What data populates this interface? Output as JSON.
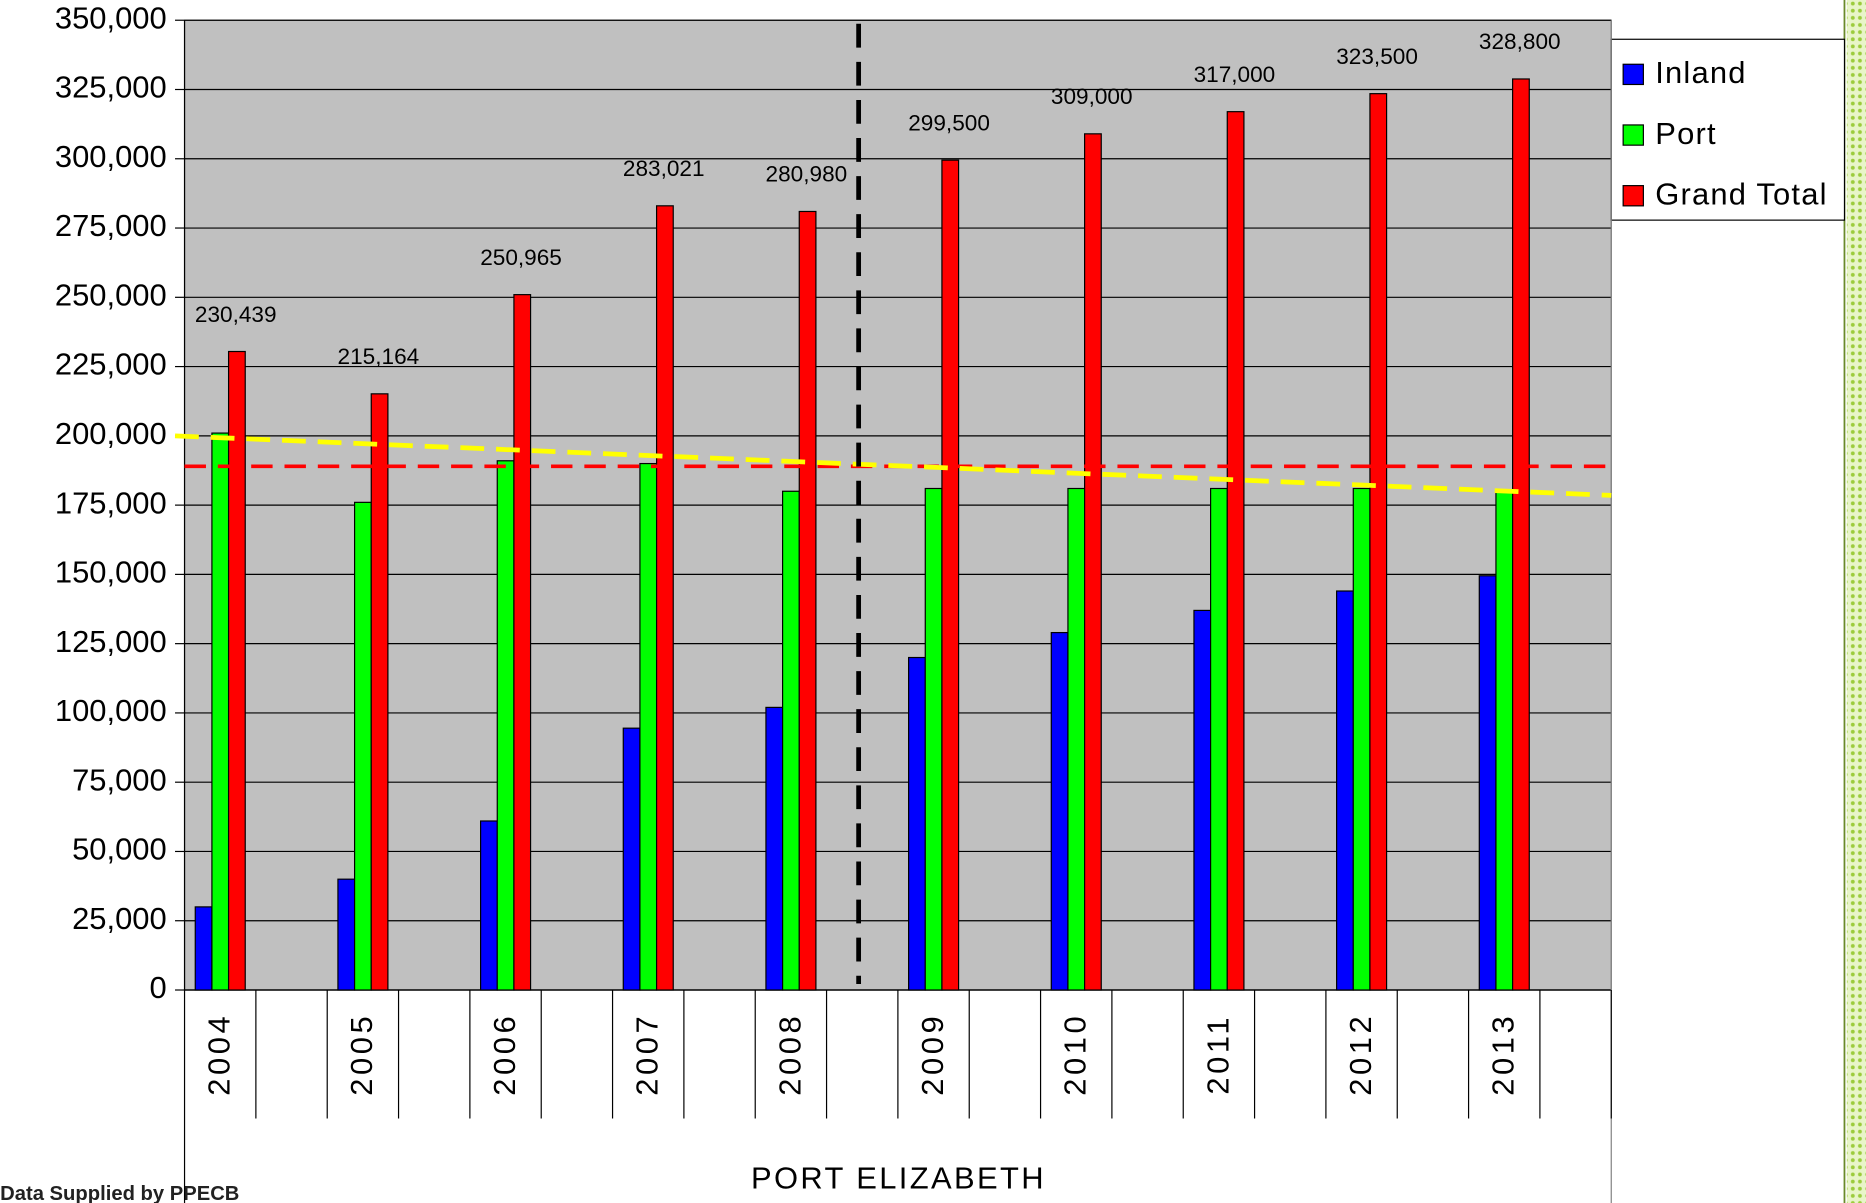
{
  "chart_data": {
    "type": "bar",
    "x_label": "PORT ELIZABETH",
    "footnote": "Data Supplied by PPECB",
    "categories": [
      "2004",
      "2005",
      "2006",
      "2007",
      "2008",
      "2009",
      "2010",
      "2011",
      "2012",
      "2013"
    ],
    "series": [
      {
        "name": "Inland",
        "color": "#0000ff",
        "values": [
          30000,
          40000,
          61000,
          94500,
          102000,
          120000,
          129000,
          137000,
          144000,
          149500
        ]
      },
      {
        "name": "Port",
        "color": "#00ff00",
        "values": [
          201000,
          176000,
          191000,
          190000,
          180000,
          181000,
          181000,
          181000,
          181000,
          180000
        ]
      },
      {
        "name": "Grand Total",
        "color": "#ff0000",
        "values": [
          230439,
          215164,
          250965,
          283021,
          280980,
          299500,
          309000,
          317000,
          323500,
          328800
        ],
        "value_labels": [
          "230,439",
          "215,164",
          "250,965",
          "283,021",
          "280,980",
          "299,500",
          "309,000",
          "317,000",
          "323,500",
          "328,800"
        ]
      }
    ],
    "ylim": [
      0,
      350000
    ],
    "yticks": [
      0,
      {
        "value": 25000,
        "label": "25,000"
      },
      {
        "value": 50000,
        "label": "50,000"
      },
      {
        "value": 75000,
        "label": "75,000"
      },
      {
        "value": 100000,
        "label": "100,000"
      },
      {
        "value": 125000,
        "label": "125,000"
      },
      {
        "value": 150000,
        "label": "150,000"
      },
      {
        "value": 175000,
        "label": "175,000"
      },
      {
        "value": 200000,
        "label": "200,000"
      },
      {
        "value": 225000,
        "label": "225,000"
      },
      {
        "value": 250000,
        "label": "250,000"
      },
      {
        "value": 275000,
        "label": "275,000"
      },
      {
        "value": 300000,
        "label": "300,000"
      },
      {
        "value": 325000,
        "label": "325,000"
      },
      {
        "value": 350000,
        "label": "350,000"
      }
    ],
    "grid": true,
    "legend": "right",
    "reference_line": {
      "value": 189000,
      "color": "#ff0000"
    },
    "trendline": {
      "start": 200000,
      "end": 178500,
      "color": "#ffff00"
    },
    "divider": {
      "after": "2008",
      "color": "#000000"
    }
  }
}
